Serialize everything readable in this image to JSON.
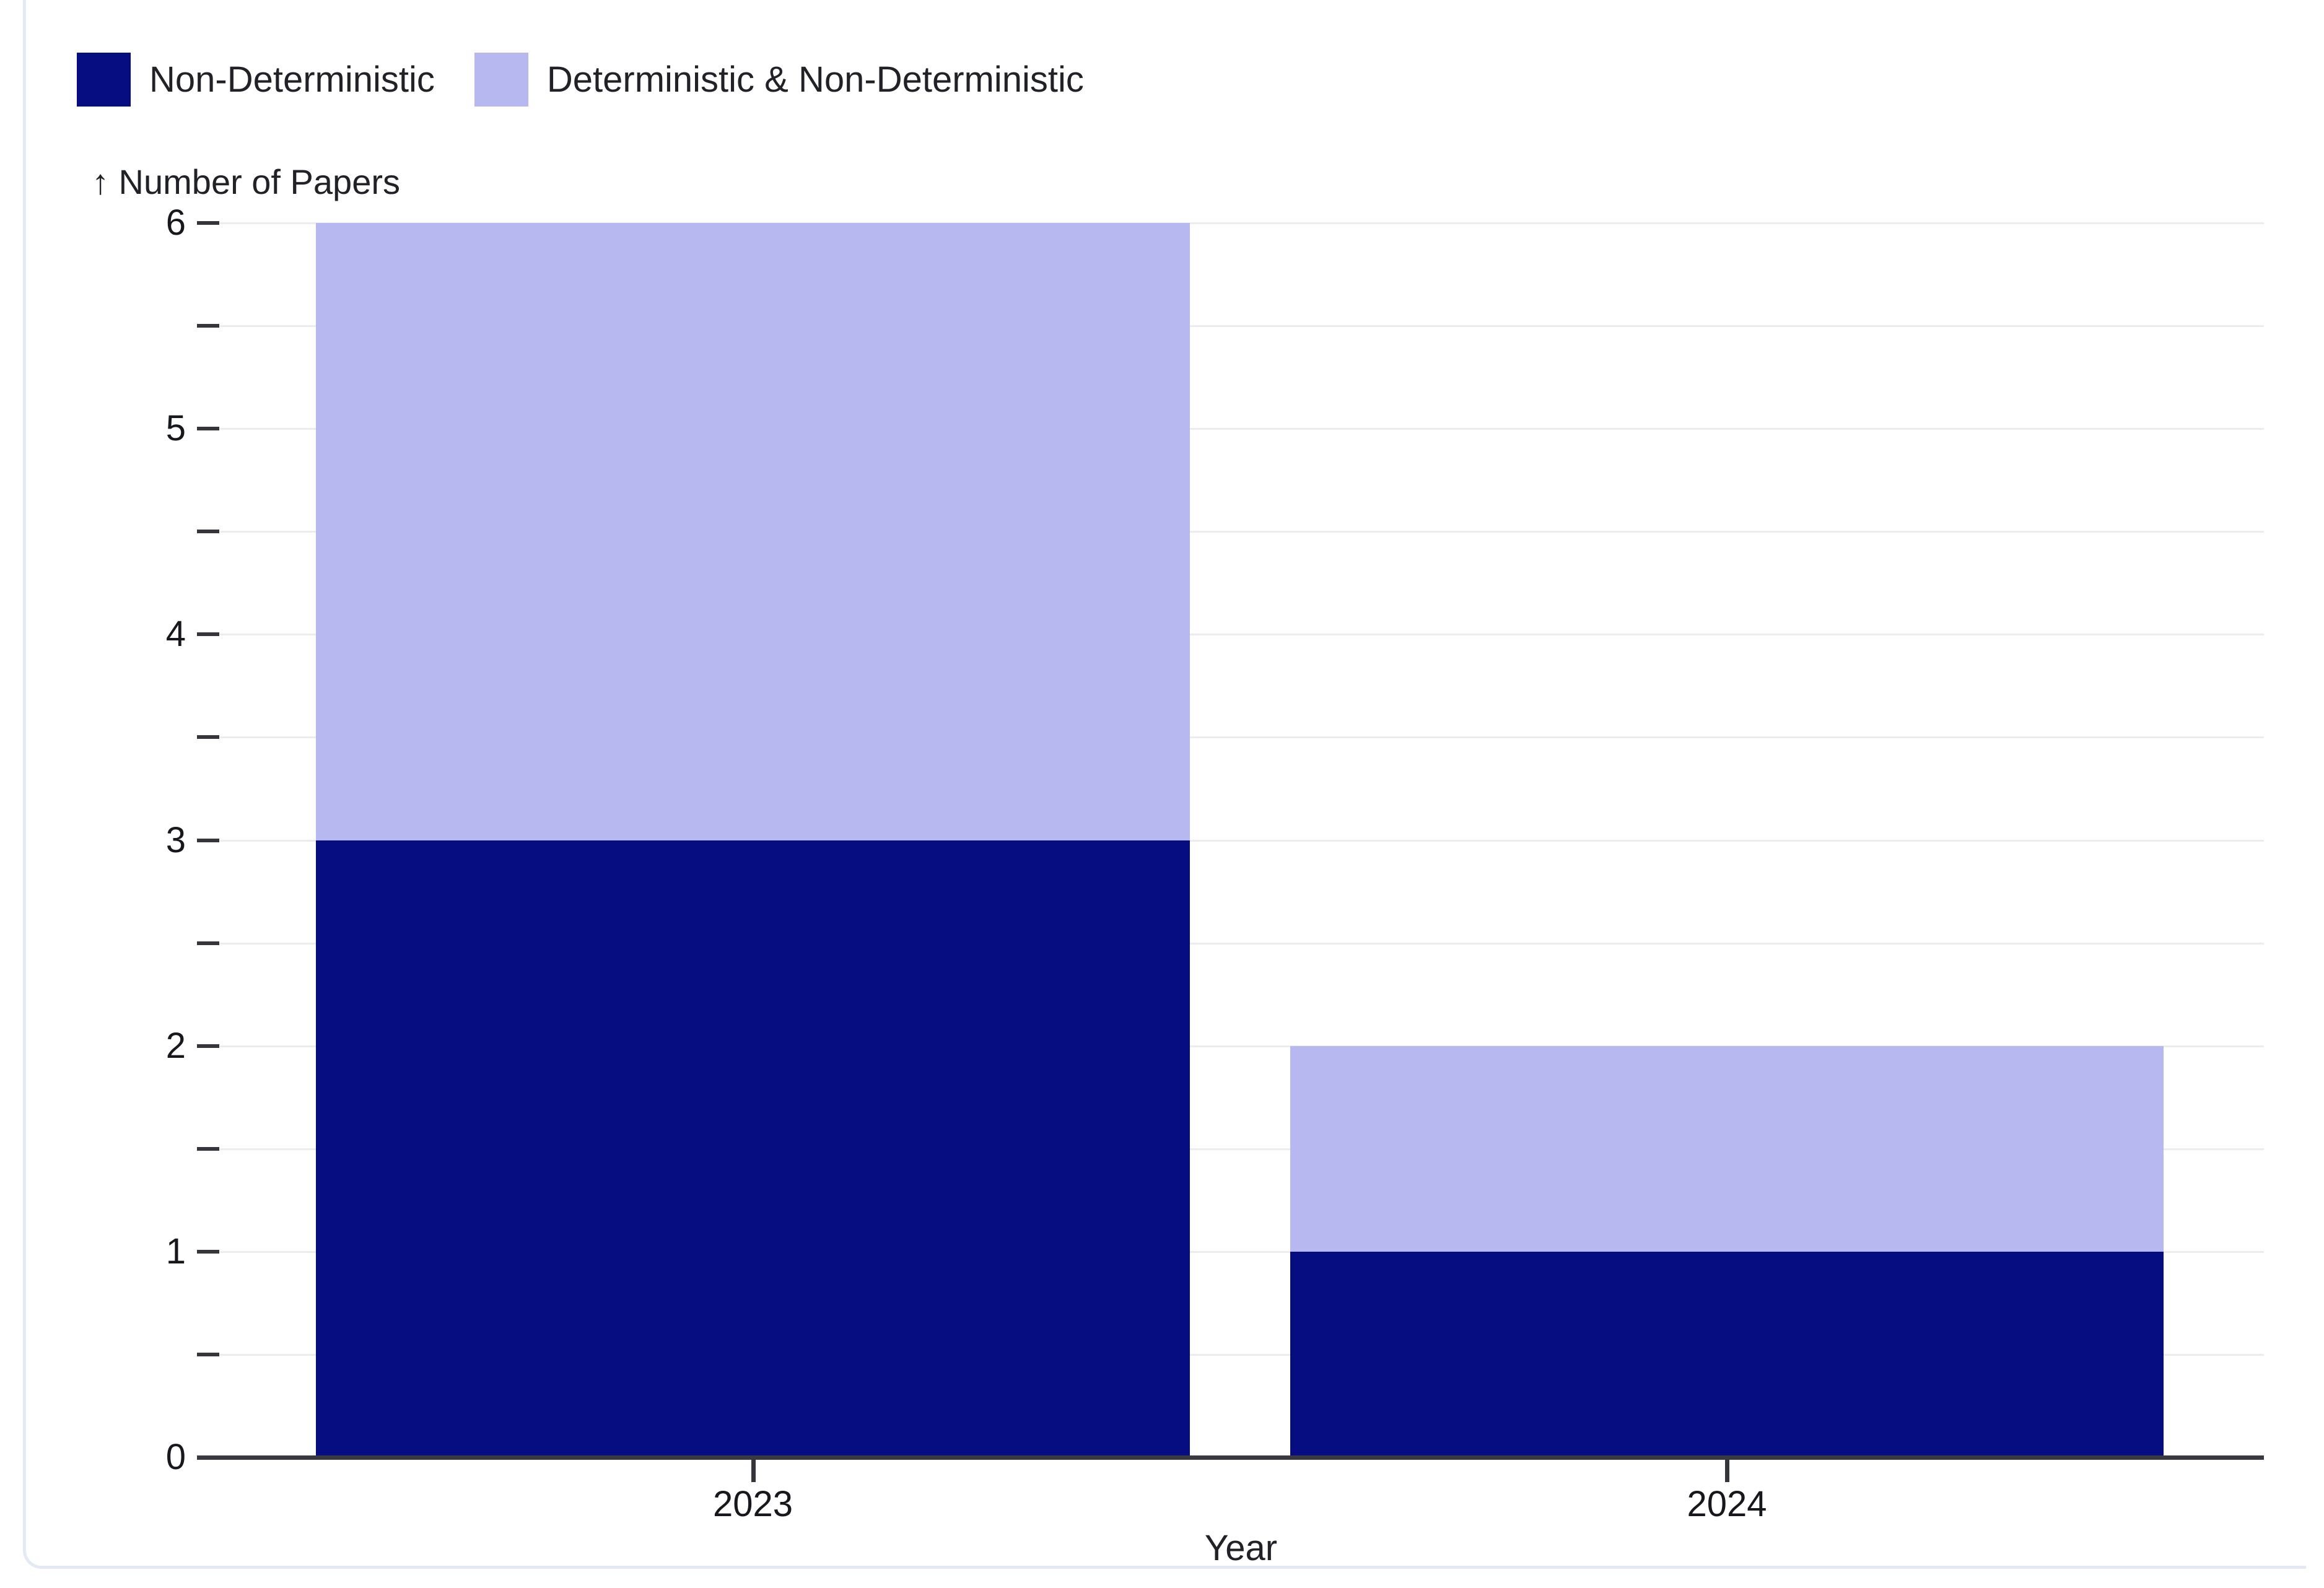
{
  "chart_data": {
    "type": "bar",
    "stacked": true,
    "categories": [
      "2023",
      "2024"
    ],
    "series": [
      {
        "name": "Non-Deterministic",
        "color": "#050d81",
        "values": [
          3,
          1
        ]
      },
      {
        "name": "Deterministic & Non-Deterministic",
        "color": "#b6b8ef",
        "values": [
          3,
          1
        ]
      }
    ],
    "totals": [
      6,
      2
    ],
    "title": "",
    "xlabel": "Year",
    "ylabel": "Number of Papers",
    "ylim": [
      0,
      6
    ],
    "y_major_ticks": [
      0,
      1,
      2,
      3,
      4,
      5,
      6
    ],
    "y_minor_interval": 0.5,
    "grid": true,
    "legend_position": "top-left"
  },
  "axes": {
    "y_title_display": "↑ Number of Papers",
    "x_title": "Year"
  },
  "legend": {
    "items": [
      {
        "label": "Non-Deterministic",
        "color": "#050d81"
      },
      {
        "label": "Deterministic & Non-Deterministic",
        "color": "#b6b8ef"
      }
    ]
  },
  "colors": {
    "bar_dark": "#050d81",
    "bar_light": "#b6b8ef",
    "gridline": "#ececec",
    "axis_line": "#383941",
    "tick_mark": "#35363b",
    "text": "#17181d",
    "card_border": "#e3eaf4",
    "background": "#ffffff"
  }
}
